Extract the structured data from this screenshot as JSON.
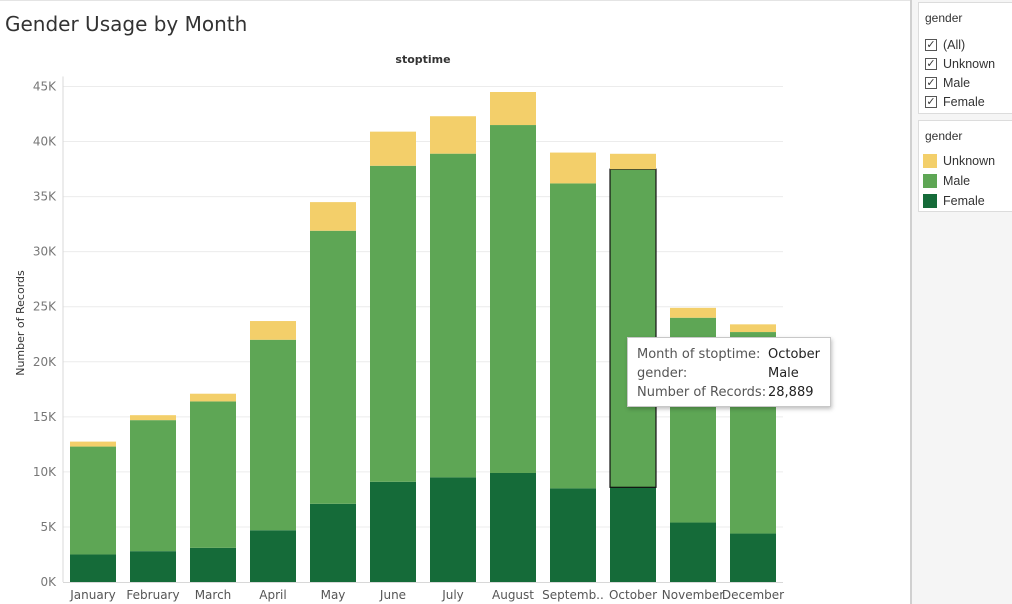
{
  "title": "Gender Usage by Month",
  "chart_data": {
    "type": "bar",
    "stacked": true,
    "column_header": "stoptime",
    "ylabel": "Number of Records",
    "ylim": [
      0,
      45000
    ],
    "yticks": [
      0,
      5000,
      10000,
      15000,
      20000,
      25000,
      30000,
      35000,
      40000,
      45000
    ],
    "ytick_labels": [
      "0K",
      "5K",
      "10K",
      "15K",
      "20K",
      "25K",
      "30K",
      "35K",
      "40K",
      "45K"
    ],
    "categories": [
      "January",
      "February",
      "March",
      "April",
      "May",
      "June",
      "July",
      "August",
      "Septemb..",
      "October",
      "November",
      "December"
    ],
    "series": [
      {
        "name": "Female",
        "color": "#156b39",
        "values": [
          2500,
          2800,
          3100,
          4700,
          7100,
          9100,
          9500,
          9900,
          8500,
          8600,
          5400,
          4400
        ]
      },
      {
        "name": "Male",
        "color": "#5ea655",
        "values": [
          9800,
          11900,
          13300,
          17300,
          24800,
          28700,
          29400,
          31600,
          27700,
          28889,
          18600,
          18300
        ]
      },
      {
        "name": "Unknown",
        "color": "#f3cf6a",
        "values": [
          450,
          450,
          700,
          1700,
          2600,
          3100,
          3400,
          3000,
          2800,
          1400,
          900,
          700
        ]
      }
    ],
    "legend_position": "right",
    "grid": true,
    "highlighted": {
      "category": "October",
      "series": "Male"
    }
  },
  "filter": {
    "title": "gender",
    "items": [
      {
        "label": "(All)",
        "checked": true
      },
      {
        "label": "Unknown",
        "checked": true
      },
      {
        "label": "Male",
        "checked": true
      },
      {
        "label": "Female",
        "checked": true
      }
    ]
  },
  "legend": {
    "title": "gender",
    "items": [
      {
        "label": "Unknown",
        "color": "#f3cf6a"
      },
      {
        "label": "Male",
        "color": "#5ea655"
      },
      {
        "label": "Female",
        "color": "#156b39"
      }
    ]
  },
  "tooltip": {
    "rows": [
      {
        "key": "Month of stoptime:",
        "value": "October"
      },
      {
        "key": "gender:",
        "value": "Male"
      },
      {
        "key": "Number of Records:",
        "value": "28,889"
      }
    ]
  }
}
